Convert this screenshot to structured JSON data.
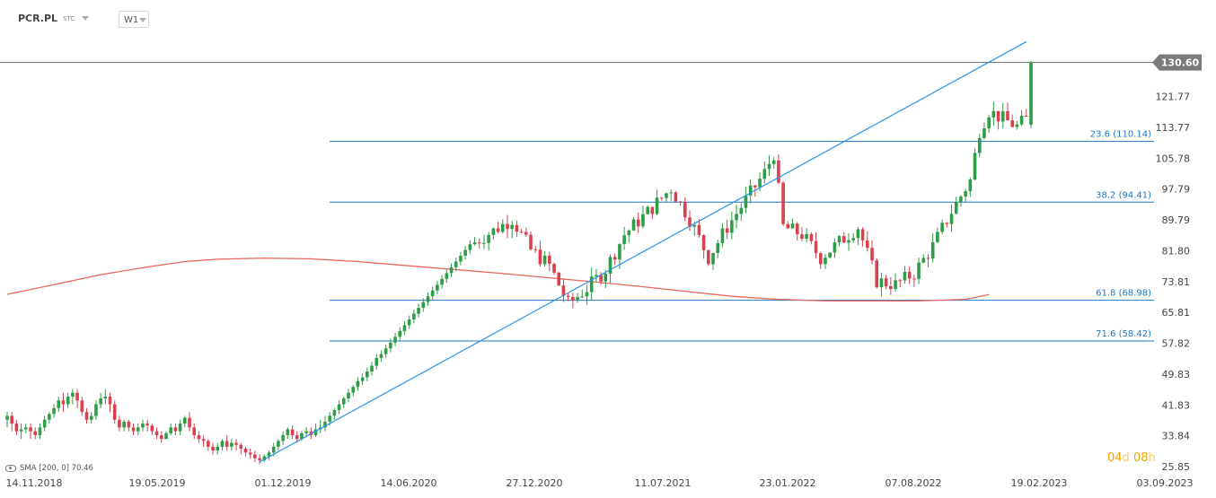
{
  "header": {
    "symbol": "PCR.PL",
    "exchange": "STC",
    "interval": "W1"
  },
  "price_label": "130.60",
  "countdown": {
    "days": "04",
    "days_unit": "d",
    "hours": "08",
    "hours_unit": "h"
  },
  "indicator_label": "SMA  [200,  0]  70.46",
  "colors": {
    "up": "#2e9e46",
    "down": "#d9414e",
    "sma": "#e8665f",
    "fib": "#1f77c4",
    "trend": "#2a94e8",
    "price_line": "#6e6e6e"
  },
  "chart_data": {
    "type": "candlestick",
    "title": "",
    "xlabel": "",
    "ylabel": "",
    "ylim": [
      25.85,
      137.5
    ],
    "y_ticks": [
      {
        "label": "121.77",
        "value": 121.77
      },
      {
        "label": "113.77",
        "value": 113.77
      },
      {
        "label": "105.78",
        "value": 105.78
      },
      {
        "label": "97.79",
        "value": 97.79
      },
      {
        "label": "89.79",
        "value": 89.79
      },
      {
        "label": "81.80",
        "value": 81.8
      },
      {
        "label": "73.81",
        "value": 73.81
      },
      {
        "label": "65.81",
        "value": 65.81
      },
      {
        "label": "57.82",
        "value": 57.82
      },
      {
        "label": "49.83",
        "value": 49.83
      },
      {
        "label": "41.83",
        "value": 41.83
      },
      {
        "label": "33.84",
        "value": 33.84
      },
      {
        "label": "25.85",
        "value": 25.85
      }
    ],
    "x_ticks": [
      "14.11.2018",
      "19.05.2019",
      "01.12.2019",
      "14.06.2020",
      "27.12.2020",
      "11.07.2021",
      "23.01.2022",
      "07.08.2022",
      "19.02.2023",
      "03.09.2023"
    ],
    "last_price": 130.6,
    "fib_levels": [
      {
        "label": "23.6 (110.14)",
        "value": 110.14
      },
      {
        "label": "38.2 (94.41)",
        "value": 94.41
      },
      {
        "label": "61.8 (68.98)",
        "value": 68.98
      },
      {
        "label": "71.6 (58.42)",
        "value": 58.42
      }
    ],
    "sma": {
      "name": "SMA [200, 0]",
      "last_value": 70.46,
      "points": [
        [
          0,
          70.5
        ],
        [
          10,
          73.0
        ],
        [
          20,
          75.6
        ],
        [
          30,
          77.6
        ],
        [
          38,
          79.0
        ],
        [
          45,
          79.6
        ],
        [
          55,
          79.9
        ],
        [
          65,
          79.7
        ],
        [
          75,
          79.0
        ],
        [
          85,
          78.0
        ],
        [
          95,
          77.0
        ],
        [
          105,
          76.0
        ],
        [
          115,
          74.9
        ],
        [
          125,
          73.8
        ],
        [
          135,
          72.6
        ],
        [
          145,
          71.3
        ],
        [
          155,
          70.0
        ],
        [
          165,
          69.2
        ],
        [
          175,
          68.8
        ],
        [
          185,
          68.8
        ],
        [
          195,
          68.8
        ],
        [
          205,
          69.2
        ],
        [
          210,
          70.46
        ]
      ]
    },
    "trendline": {
      "from": [
        52,
        27.0
      ],
      "to": [
        218,
        136.0
      ]
    },
    "candles": [
      [
        38,
        39,
        36,
        40
      ],
      [
        39,
        37,
        35,
        40
      ],
      [
        37,
        35,
        34,
        38
      ],
      [
        35,
        35.5,
        33,
        37
      ],
      [
        35.5,
        36,
        34.5,
        37
      ],
      [
        36,
        35,
        33,
        37
      ],
      [
        35,
        34,
        33,
        36
      ],
      [
        34,
        36,
        33,
        37
      ],
      [
        36,
        38,
        35,
        39
      ],
      [
        38,
        39.5,
        37,
        40
      ],
      [
        39.5,
        41,
        38.5,
        42
      ],
      [
        41,
        43,
        40,
        44
      ],
      [
        43,
        42,
        40,
        45
      ],
      [
        42,
        44,
        41,
        45
      ],
      [
        44,
        45,
        42,
        46
      ],
      [
        45,
        43,
        41,
        46
      ],
      [
        43,
        40,
        39,
        44
      ],
      [
        40,
        38,
        37,
        41
      ],
      [
        38,
        39,
        37,
        40
      ],
      [
        39,
        42,
        38,
        43
      ],
      [
        42,
        43.5,
        41,
        45
      ],
      [
        43.5,
        44,
        42,
        46
      ],
      [
        44,
        42,
        40,
        45
      ],
      [
        42,
        38,
        37,
        43
      ],
      [
        38,
        36,
        35,
        39
      ],
      [
        36,
        37.5,
        35,
        38
      ],
      [
        37.5,
        36,
        35,
        38
      ],
      [
        36,
        35,
        34,
        37
      ],
      [
        35,
        36,
        34,
        37
      ],
      [
        36,
        37,
        35,
        38
      ],
      [
        37,
        36.5,
        35,
        38
      ],
      [
        36.5,
        35,
        34,
        37
      ],
      [
        35,
        34,
        33,
        36
      ],
      [
        34,
        33,
        32,
        35
      ],
      [
        33,
        34.5,
        33,
        35
      ],
      [
        34.5,
        36,
        34,
        37
      ],
      [
        36,
        35,
        34,
        37
      ],
      [
        35,
        37,
        34,
        38
      ],
      [
        37,
        38.5,
        36,
        39
      ],
      [
        38.5,
        36,
        35,
        40
      ],
      [
        36,
        34,
        33,
        37
      ],
      [
        34,
        33,
        32,
        35
      ],
      [
        33,
        32.5,
        31,
        34
      ],
      [
        32.5,
        31,
        30,
        33
      ],
      [
        31,
        30,
        29,
        32
      ],
      [
        30,
        31,
        29,
        32
      ],
      [
        31,
        32.5,
        30,
        33
      ],
      [
        32.5,
        31,
        30,
        34
      ],
      [
        31,
        32,
        30,
        33
      ],
      [
        32,
        31.5,
        30,
        33
      ],
      [
        31.5,
        30.5,
        29,
        32
      ],
      [
        30.5,
        29.5,
        28.5,
        31
      ],
      [
        29.5,
        29,
        28,
        30.5
      ],
      [
        29,
        28,
        27,
        30
      ],
      [
        28,
        27.5,
        26.5,
        29
      ],
      [
        27.5,
        28.5,
        27,
        29
      ],
      [
        28.5,
        29.5,
        27.5,
        30
      ],
      [
        29.5,
        31,
        28.5,
        32
      ],
      [
        31,
        32.5,
        30,
        33
      ],
      [
        32.5,
        34,
        31.5,
        35
      ],
      [
        34,
        35.5,
        33,
        36
      ],
      [
        35.5,
        34,
        33,
        36.5
      ],
      [
        34,
        33,
        32,
        35
      ],
      [
        33,
        34.5,
        32.5,
        35
      ],
      [
        34.5,
        35,
        33.5,
        36
      ],
      [
        35,
        34,
        33,
        36
      ],
      [
        34,
        35.5,
        33.5,
        37
      ],
      [
        35.5,
        36,
        34.5,
        38
      ],
      [
        36,
        37.5,
        35,
        39
      ],
      [
        37.5,
        39,
        36.5,
        40
      ],
      [
        39,
        40.5,
        38,
        41
      ],
      [
        40.5,
        42,
        39.5,
        43
      ],
      [
        42,
        43.5,
        41,
        44
      ],
      [
        43.5,
        45,
        42.5,
        46
      ],
      [
        45,
        46.5,
        44,
        47
      ],
      [
        46.5,
        48,
        45.5,
        49
      ],
      [
        48,
        49,
        47,
        50
      ],
      [
        49,
        50.5,
        48,
        51.5
      ],
      [
        50.5,
        52,
        49.5,
        53
      ],
      [
        52,
        54,
        51,
        55
      ],
      [
        54,
        55,
        53,
        56
      ],
      [
        55,
        56.5,
        54,
        57.5
      ],
      [
        56.5,
        58,
        55.5,
        59
      ],
      [
        58,
        59.5,
        57,
        60.5
      ],
      [
        59.5,
        61,
        58.5,
        62
      ],
      [
        61,
        62.5,
        60,
        63.5
      ],
      [
        62.5,
        64,
        61.5,
        65
      ],
      [
        64,
        65.5,
        63,
        66.5
      ],
      [
        65.5,
        67,
        64.5,
        68
      ],
      [
        67,
        68.5,
        66,
        69.5
      ],
      [
        68.5,
        70,
        67.5,
        71
      ],
      [
        70,
        71.5,
        69,
        72.5
      ],
      [
        71.5,
        73,
        70.5,
        74
      ],
      [
        73,
        74.5,
        72,
        75.5
      ],
      [
        74.5,
        76,
        73.5,
        77
      ],
      [
        76,
        77.5,
        75,
        78.5
      ],
      [
        77.5,
        79,
        76.5,
        80
      ],
      [
        79,
        80.5,
        78,
        81.5
      ],
      [
        80.5,
        82,
        79.5,
        83
      ],
      [
        82,
        83.5,
        81,
        84.5
      ]
    ]
  }
}
